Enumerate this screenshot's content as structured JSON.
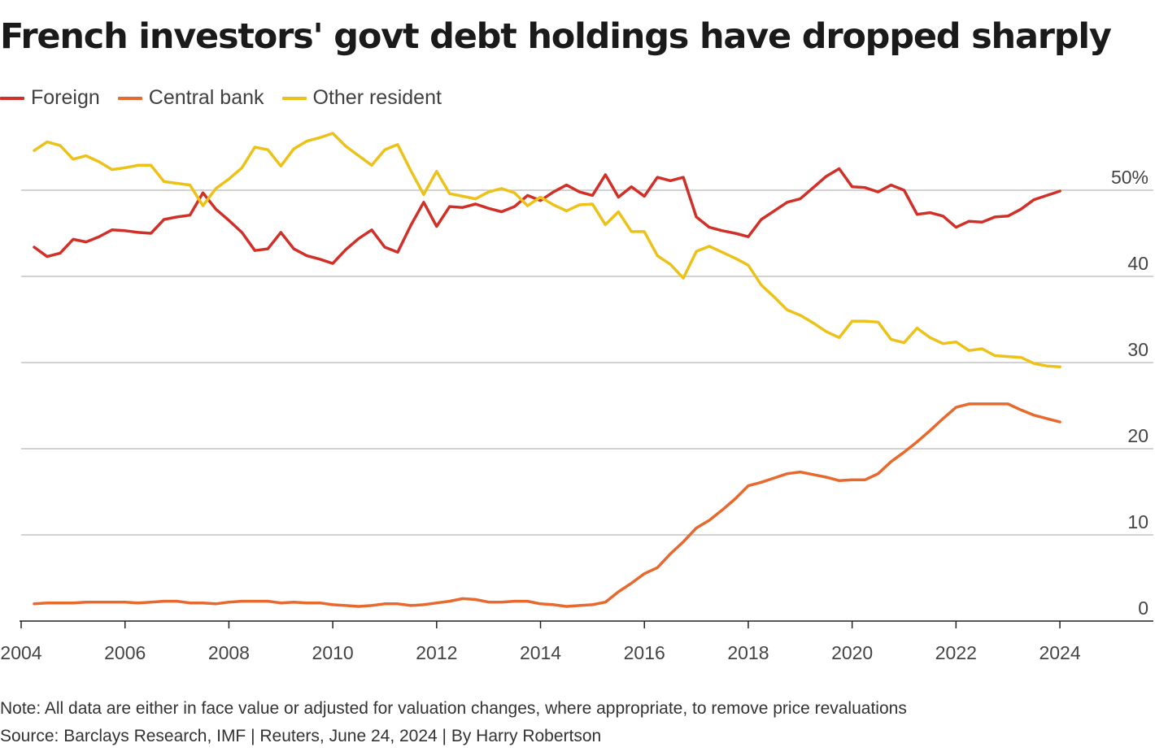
{
  "title": "French investors' govt debt holdings have dropped sharply",
  "note": "Note: All data are either in face value or adjusted for valuation changes, where appropriate, to remove price revaluations",
  "source": "Source: Barclays Research, IMF | Reuters, June 24, 2024 | By Harry Robertson",
  "legend": [
    {
      "label": "Foreign",
      "color": "#d03028"
    },
    {
      "label": "Central bank",
      "color": "#e8692d"
    },
    {
      "label": "Other resident",
      "color": "#ecc219"
    }
  ],
  "chart_data": {
    "type": "line",
    "title": "French investors' govt debt holdings have dropped sharply",
    "xlabel": "",
    "ylabel": "",
    "xlim": [
      2004,
      2025.8
    ],
    "ylim": [
      0,
      57
    ],
    "x_ticks": [
      2004,
      2006,
      2008,
      2010,
      2012,
      2014,
      2016,
      2018,
      2020,
      2022,
      2024
    ],
    "y_ticks": [
      {
        "value": 0,
        "label": "0"
      },
      {
        "value": 10,
        "label": "10"
      },
      {
        "value": 20,
        "label": "20"
      },
      {
        "value": 30,
        "label": "30"
      },
      {
        "value": 40,
        "label": "40"
      },
      {
        "value": 50,
        "label": "50%"
      }
    ],
    "grid": "horizontal",
    "legend_position": "top-left",
    "x": [
      2004.25,
      2004.5,
      2004.75,
      2005,
      2005.25,
      2005.5,
      2005.75,
      2006,
      2006.25,
      2006.5,
      2006.75,
      2007,
      2007.25,
      2007.5,
      2007.75,
      2008,
      2008.25,
      2008.5,
      2008.75,
      2009,
      2009.25,
      2009.5,
      2009.75,
      2010,
      2010.25,
      2010.5,
      2010.75,
      2011,
      2011.25,
      2011.5,
      2011.75,
      2012,
      2012.25,
      2012.5,
      2012.75,
      2013,
      2013.25,
      2013.5,
      2013.75,
      2014,
      2014.25,
      2014.5,
      2014.75,
      2015,
      2015.25,
      2015.5,
      2015.75,
      2016,
      2016.25,
      2016.5,
      2016.75,
      2017,
      2017.25,
      2017.5,
      2017.75,
      2018,
      2018.25,
      2018.5,
      2018.75,
      2019,
      2019.25,
      2019.5,
      2019.75,
      2020,
      2020.25,
      2020.5,
      2020.75,
      2021,
      2021.25,
      2021.5,
      2021.75,
      2022,
      2022.25,
      2022.5,
      2022.75,
      2023,
      2023.25,
      2023.5,
      2023.75,
      2024
    ],
    "series": [
      {
        "name": "Foreign",
        "color": "#d03028",
        "values": [
          43.4,
          42.3,
          42.7,
          44.3,
          44.0,
          44.6,
          45.4,
          45.3,
          45.1,
          45.0,
          46.6,
          46.9,
          47.1,
          49.7,
          47.8,
          46.5,
          45.1,
          43.0,
          43.2,
          45.1,
          43.2,
          42.4,
          42.0,
          41.5,
          43.1,
          44.4,
          45.4,
          43.4,
          42.8,
          45.9,
          48.6,
          45.8,
          48.1,
          48.0,
          48.4,
          47.9,
          47.5,
          48.1,
          49.4,
          48.8,
          49.8,
          50.6,
          49.8,
          49.4,
          51.8,
          49.2,
          50.4,
          49.3,
          51.5,
          51.1,
          51.5,
          46.9,
          45.7,
          45.3,
          45.0,
          44.6,
          46.6,
          47.6,
          48.6,
          49.0,
          50.3,
          51.6,
          52.5,
          50.4,
          50.3,
          49.8,
          50.6,
          50.0,
          47.2,
          47.4,
          47.0,
          45.7,
          46.4,
          46.3,
          46.9,
          47.0,
          47.8,
          48.9,
          49.4,
          49.9
        ]
      },
      {
        "name": "Central bank",
        "color": "#e8692d",
        "values": [
          2.0,
          2.1,
          2.1,
          2.1,
          2.2,
          2.2,
          2.2,
          2.2,
          2.1,
          2.2,
          2.3,
          2.3,
          2.1,
          2.1,
          2.0,
          2.2,
          2.3,
          2.3,
          2.3,
          2.1,
          2.2,
          2.1,
          2.1,
          1.9,
          1.8,
          1.7,
          1.8,
          2.0,
          2.0,
          1.8,
          1.9,
          2.1,
          2.3,
          2.6,
          2.5,
          2.2,
          2.2,
          2.3,
          2.3,
          2.0,
          1.9,
          1.7,
          1.8,
          1.9,
          2.2,
          3.4,
          4.4,
          5.5,
          6.2,
          7.8,
          9.2,
          10.8,
          11.7,
          12.9,
          14.2,
          15.7,
          16.1,
          16.6,
          17.1,
          17.3,
          17.0,
          16.7,
          16.3,
          16.4,
          16.4,
          17.1,
          18.5,
          19.6,
          20.8,
          22.1,
          23.5,
          24.8,
          25.2,
          25.2,
          25.2,
          25.2,
          24.5,
          23.9,
          23.5,
          23.1
        ]
      },
      {
        "name": "Other resident",
        "color": "#ecc219",
        "values": [
          54.6,
          55.6,
          55.2,
          53.6,
          54.0,
          53.3,
          52.4,
          52.6,
          52.9,
          52.9,
          51.0,
          50.8,
          50.6,
          48.2,
          50.2,
          51.3,
          52.6,
          55.0,
          54.7,
          52.8,
          54.8,
          55.7,
          56.1,
          56.6,
          55.1,
          54.0,
          52.9,
          54.7,
          55.3,
          52.3,
          49.5,
          52.2,
          49.6,
          49.3,
          49.0,
          49.8,
          50.2,
          49.7,
          48.2,
          49.2,
          48.3,
          47.6,
          48.3,
          48.4,
          46.0,
          47.5,
          45.2,
          45.2,
          42.4,
          41.4,
          39.8,
          42.9,
          43.5,
          42.8,
          42.1,
          41.3,
          39.0,
          37.6,
          36.1,
          35.5,
          34.6,
          33.6,
          32.9,
          34.8,
          34.8,
          34.7,
          32.7,
          32.3,
          34.0,
          32.9,
          32.2,
          32.4,
          31.4,
          31.6,
          30.8,
          30.7,
          30.6,
          29.9,
          29.6,
          29.5
        ]
      }
    ]
  }
}
